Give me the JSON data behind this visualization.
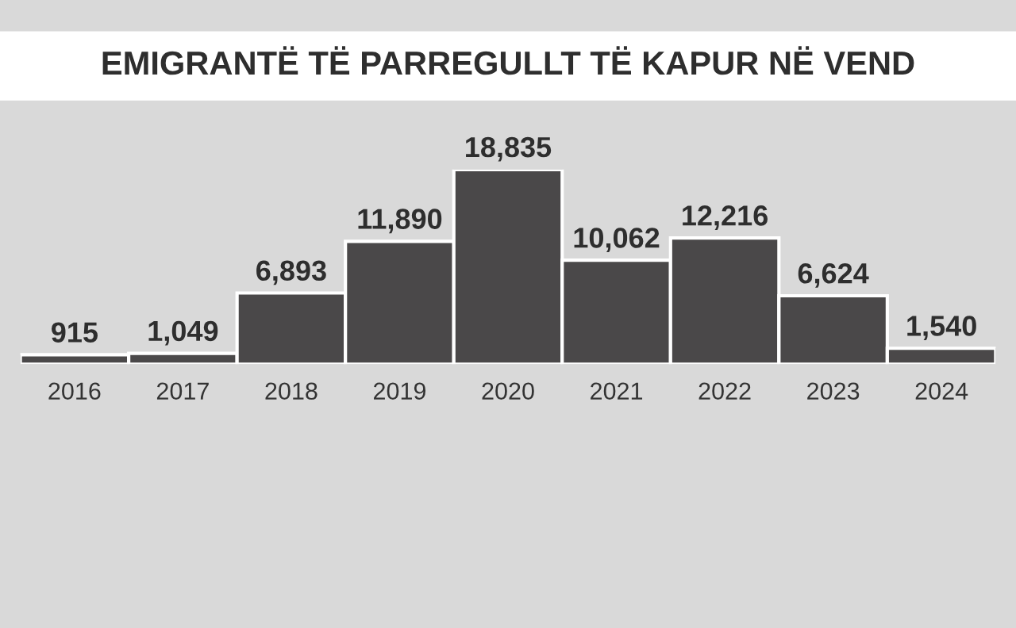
{
  "chart_data": {
    "type": "bar",
    "title": "EMIGRANTË TË PARREGULLT TË KAPUR NË VEND",
    "categories": [
      "2016",
      "2017",
      "2018",
      "2019",
      "2020",
      "2021",
      "2022",
      "2023",
      "2024"
    ],
    "values": [
      915,
      1049,
      6893,
      11890,
      18835,
      10062,
      12216,
      6624,
      1540
    ],
    "value_labels": [
      "915",
      "1,049",
      "6,893",
      "11,890",
      "18,835",
      "10,062",
      "12,216",
      "6,624",
      "1,540"
    ],
    "color": "#4a4849",
    "grid": false,
    "legend": false
  }
}
